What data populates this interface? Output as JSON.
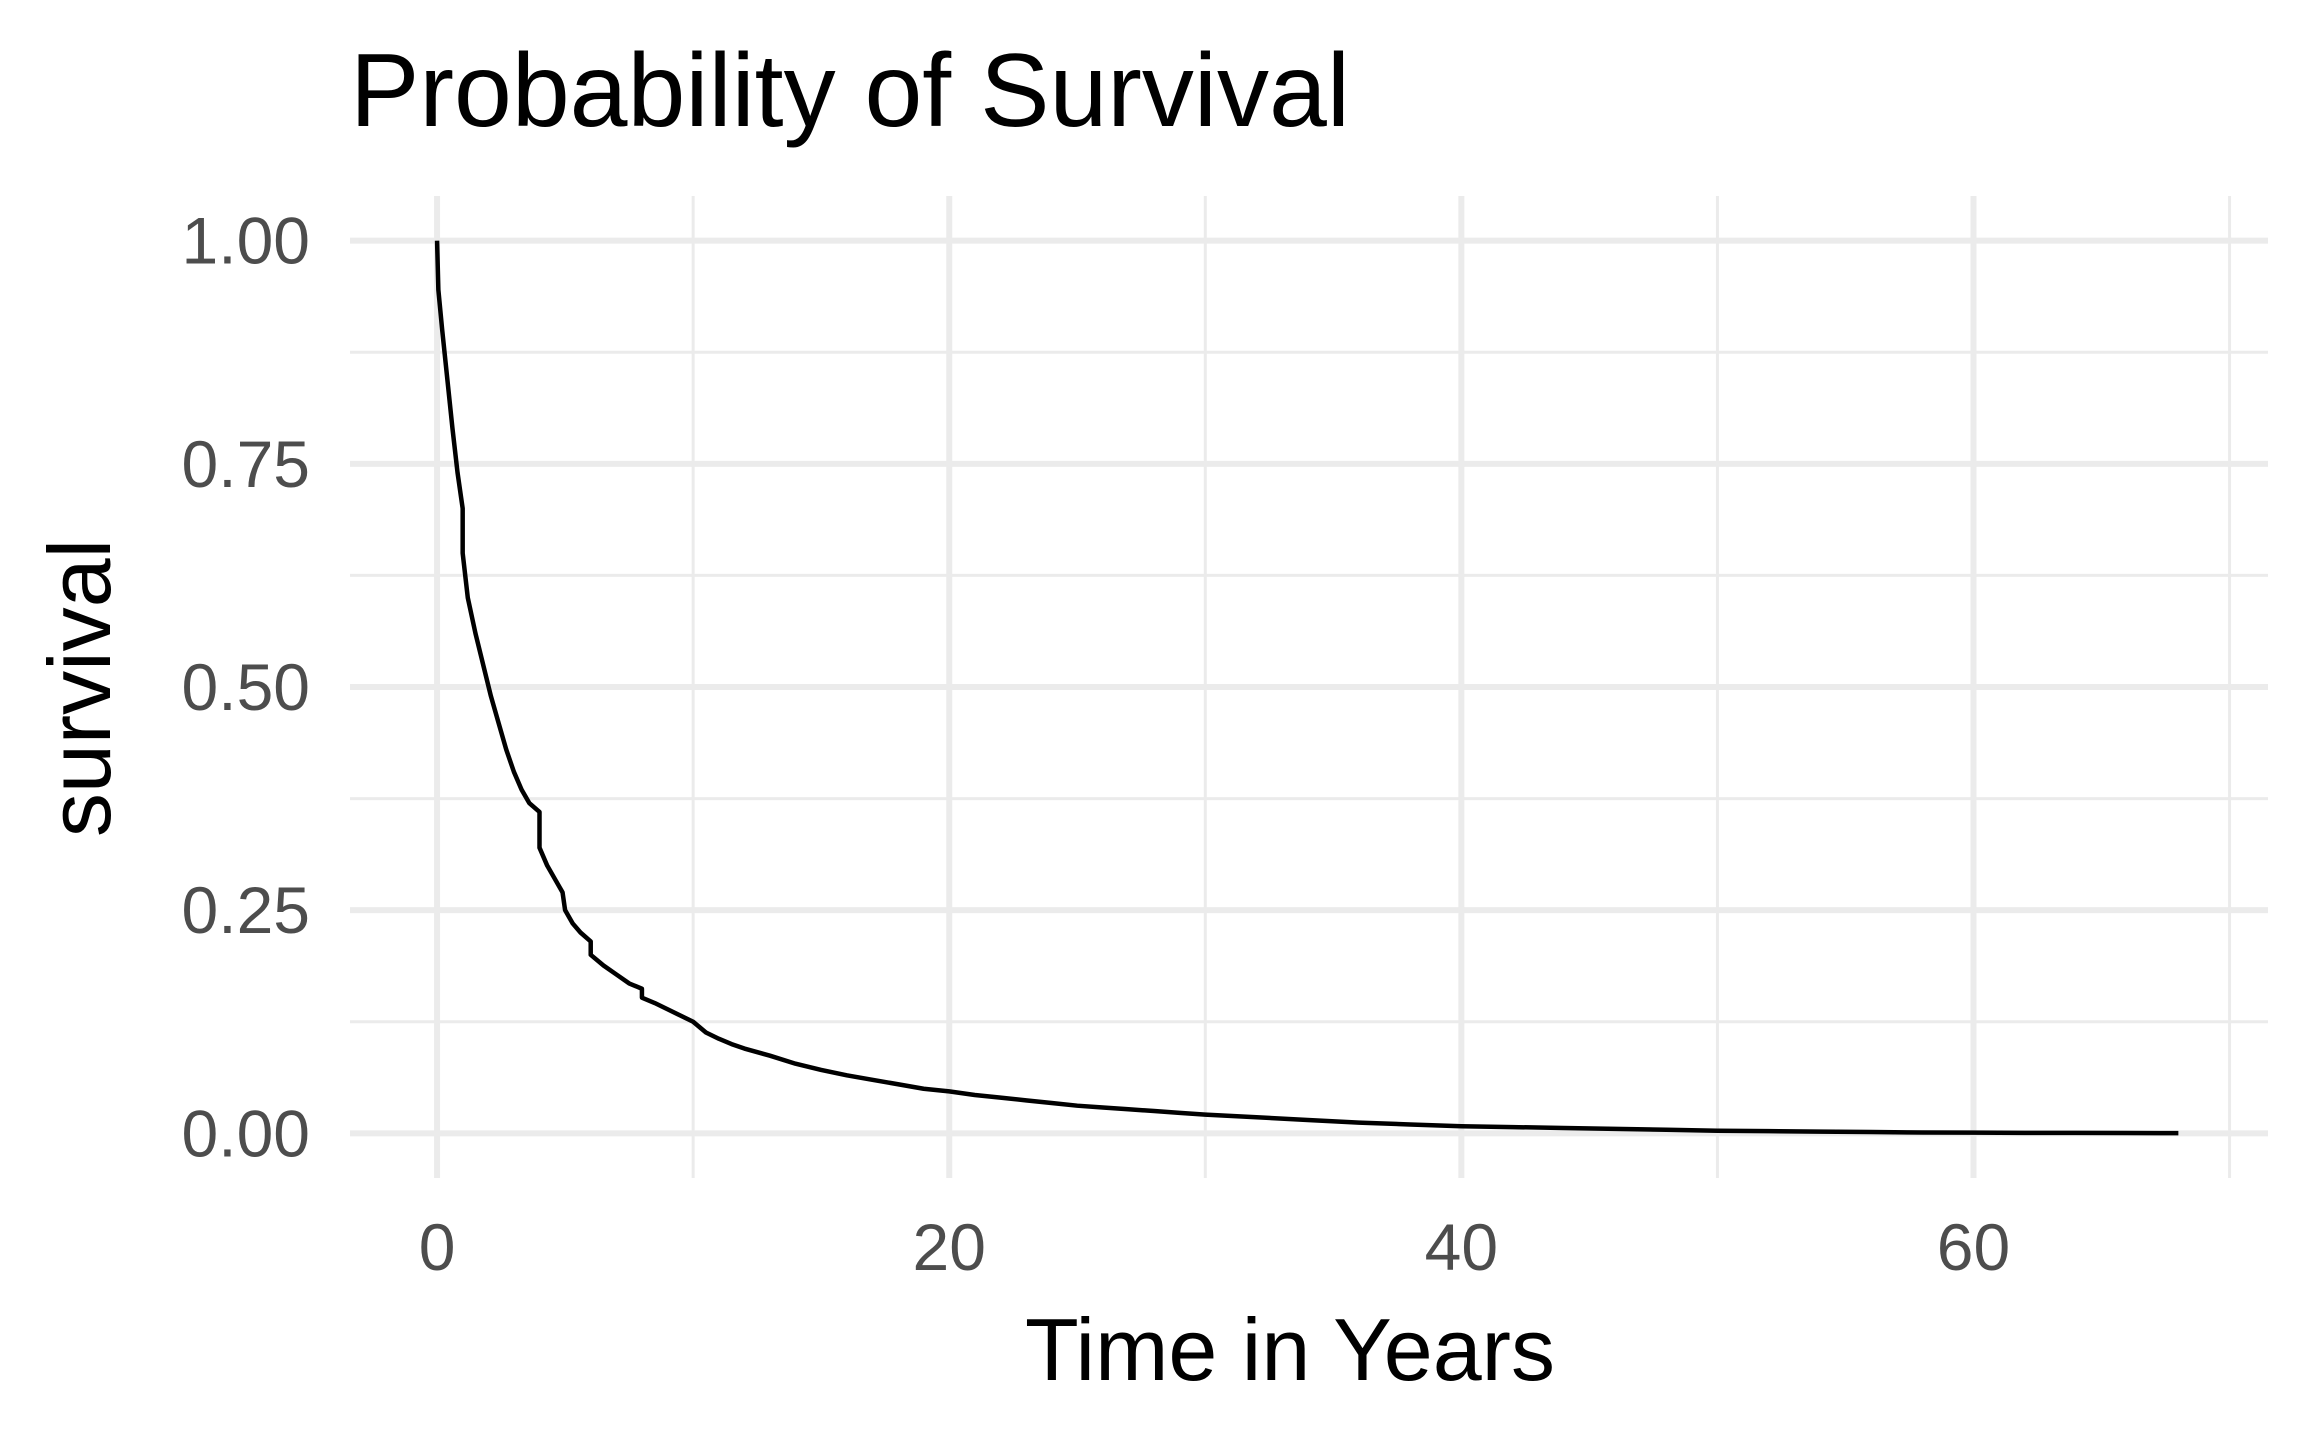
{
  "chart_data": {
    "type": "line",
    "title": "Probability of Survival",
    "xlabel": "Time in Years",
    "ylabel": "survival",
    "xlim": [
      -3.4,
      71.5
    ],
    "ylim": [
      -0.05,
      1.05
    ],
    "x_ticks": [
      0,
      20,
      40,
      60
    ],
    "x_tick_labels": [
      "0",
      "20",
      "40",
      "60"
    ],
    "x_minor_ticks": [
      10,
      30,
      50,
      70
    ],
    "y_ticks": [
      0,
      0.25,
      0.5,
      0.75,
      1.0
    ],
    "y_tick_labels": [
      "0.00",
      "0.25",
      "0.50",
      "0.75",
      "1.00"
    ],
    "y_minor_ticks": [
      0.125,
      0.375,
      0.625,
      0.875
    ],
    "grid": true,
    "legend": "none",
    "colors": {
      "line": "#000000",
      "grid": "#ebebeb",
      "tick_text": "#4d4d4d"
    },
    "series": [
      {
        "x": [
          0,
          0.05,
          0.2,
          0.4,
          0.6,
          0.8,
          1.0,
          1.0,
          1.2,
          1.5,
          1.8,
          2.1,
          2.4,
          2.7,
          3.0,
          3.3,
          3.6,
          4.0,
          4.0,
          4.3,
          4.6,
          4.9,
          5.0,
          5.3,
          5.6,
          6.0,
          6.0,
          6.5,
          7.0,
          7.5,
          8.0,
          8.0,
          8.5,
          9.0,
          9.5,
          10.0,
          10.5,
          11.0,
          11.5,
          12.0,
          13.0,
          14.0,
          15.0,
          16.0,
          17.0,
          18.0,
          19.0,
          20.0,
          21.0,
          22.0,
          23.0,
          24.0,
          25.0,
          26.0,
          27.0,
          28.0,
          29.0,
          30.0,
          32.0,
          34.0,
          36.0,
          38.0,
          40.0,
          42.0,
          44.0,
          46.0,
          48.0,
          50.0,
          52.0,
          54.0,
          56.0,
          58.0,
          60.0,
          62.0,
          64.0,
          66.0,
          68.0
        ],
        "y": [
          1.0,
          0.945,
          0.9,
          0.845,
          0.79,
          0.74,
          0.7,
          0.65,
          0.6,
          0.56,
          0.525,
          0.49,
          0.46,
          0.43,
          0.405,
          0.385,
          0.37,
          0.36,
          0.32,
          0.3,
          0.285,
          0.27,
          0.25,
          0.235,
          0.225,
          0.215,
          0.2,
          0.188,
          0.178,
          0.168,
          0.162,
          0.152,
          0.146,
          0.139,
          0.132,
          0.125,
          0.113,
          0.106,
          0.1,
          0.095,
          0.087,
          0.078,
          0.071,
          0.065,
          0.06,
          0.055,
          0.05,
          0.047,
          0.043,
          0.04,
          0.037,
          0.034,
          0.031,
          0.029,
          0.027,
          0.025,
          0.023,
          0.021,
          0.018,
          0.015,
          0.012,
          0.01,
          0.008,
          0.007,
          0.006,
          0.005,
          0.004,
          0.003,
          0.0025,
          0.002,
          0.0015,
          0.001,
          0.0008,
          0.0006,
          0.0005,
          0.0004,
          0.0003
        ]
      }
    ]
  }
}
